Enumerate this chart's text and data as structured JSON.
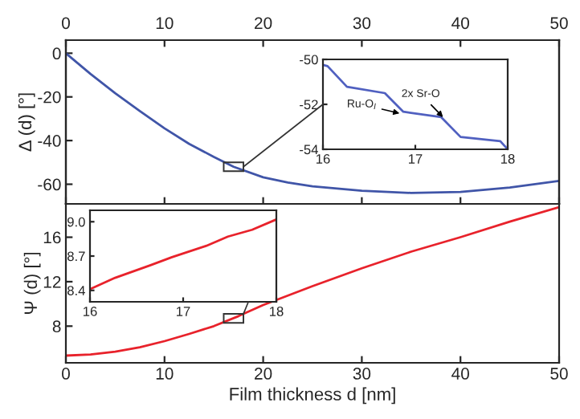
{
  "chart_data": [
    {
      "type": "line",
      "ylabel": "Δ (d) [°]",
      "xlim": [
        0,
        50
      ],
      "ylim": [
        -69,
        6
      ],
      "yticks": [
        0,
        -20,
        -40,
        -60
      ],
      "x2lim": [
        0,
        50
      ],
      "x2ticks": [
        0,
        10,
        20,
        30,
        40,
        50
      ],
      "tick_labels": "y",
      "grid": false,
      "legend": false,
      "series": [
        {
          "color": "#4055a8",
          "x": [
            0,
            2.5,
            5,
            7.5,
            10,
            12.5,
            15,
            17,
            20,
            22.5,
            25,
            30,
            35,
            40,
            45,
            50
          ],
          "values": [
            0,
            -9.5,
            -18.3,
            -26.5,
            -34.4,
            -41.5,
            -47.5,
            -52,
            -56.8,
            -59.2,
            -61,
            -63,
            -64,
            -63.5,
            -61.5,
            -58.5
          ]
        }
      ]
    },
    {
      "type": "line",
      "xlim": [
        16,
        18
      ],
      "ylim": [
        -54,
        -50
      ],
      "xticks": [
        16,
        17,
        18
      ],
      "yticks": [
        -50,
        -52,
        -54
      ],
      "grid": false,
      "legend": false,
      "series": [
        {
          "color": "#5060c0",
          "x": [
            16,
            16.05,
            16.26,
            16.67,
            16.87,
            17.28,
            17.49,
            17.92,
            18
          ],
          "values": [
            -50.24,
            -50.3,
            -51.22,
            -51.5,
            -52.33,
            -52.57,
            -53.45,
            -53.64,
            -54
          ]
        }
      ],
      "annotations": [
        {
          "text": "Ru-O$_{I}$",
          "x": 16.83,
          "y": -52.4
        },
        {
          "text": "2x Sr-O",
          "x": 17.3,
          "y": -52.57
        }
      ]
    },
    {
      "type": "line",
      "xlabel": "Film thickness d [nm]",
      "ylabel": "Ψ (d) [°]",
      "xlim": [
        0,
        50
      ],
      "xticks": [
        0,
        10,
        20,
        30,
        40,
        50
      ],
      "ylim": [
        4.7,
        19
      ],
      "yticks": [
        8,
        12,
        16
      ],
      "grid": false,
      "legend": false,
      "series": [
        {
          "color": "#e8222b",
          "x": [
            0,
            2.5,
            5,
            7.5,
            10,
            12.5,
            15,
            17.5,
            20,
            25,
            30,
            35,
            40,
            45,
            50
          ],
          "values": [
            5.35,
            5.45,
            5.7,
            6.1,
            6.65,
            7.3,
            8.0,
            8.9,
            9.9,
            11.6,
            13.2,
            14.7,
            16.0,
            17.4,
            18.7
          ]
        }
      ]
    },
    {
      "type": "line",
      "xlim": [
        16,
        18
      ],
      "ylim": [
        8.3,
        9.1
      ],
      "xticks": [
        16,
        17,
        18
      ],
      "yticks": [
        8.4,
        8.7,
        {
          "value": 9,
          "label": "9.0"
        }
      ],
      "grid": false,
      "legend": false,
      "series": [
        {
          "color": "#e8222b",
          "x": [
            16,
            16.27,
            16.65,
            16.88,
            17.25,
            17.48,
            17.74,
            18
          ],
          "values": [
            8.41,
            8.51,
            8.62,
            8.69,
            8.79,
            8.87,
            8.93,
            9.02
          ]
        }
      ]
    }
  ]
}
